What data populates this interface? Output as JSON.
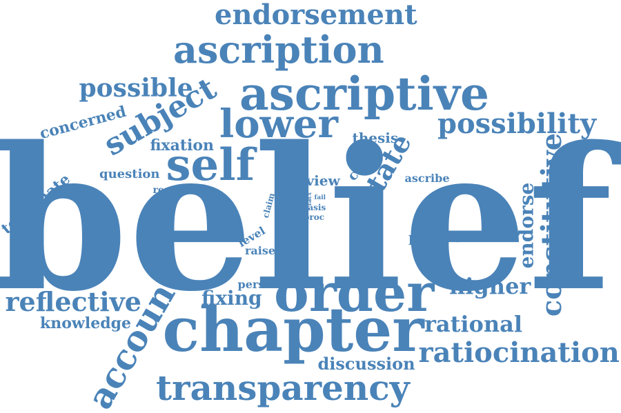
{
  "cloud": {
    "color": "#4a83b8",
    "words": {
      "belief": "belief",
      "order": "order",
      "chapter": "chapter",
      "ascriptive": "ascriptive",
      "ascription": "ascription",
      "endorsement": "endorsement",
      "self": "self",
      "lower": "lower",
      "transparency": "transparency",
      "subject": "subject",
      "possibility": "possibility",
      "possible": "possible",
      "account": "account",
      "ratiocination": "ratiocination",
      "reflective": "reflective",
      "constitutive": "constitutive",
      "state": "state",
      "rational": "rational",
      "higher": "higher",
      "endorse": "endorse",
      "fixing": "fixing",
      "concerned": "concerned",
      "fixation": "fixation",
      "knowledge": "knowledge",
      "discussion": "discussion",
      "terminate": "terminate",
      "question": "question",
      "thesis": "thesis",
      "paradox": "paradox",
      "view": "view",
      "case": "case",
      "ascribe": "ascribe",
      "level": "level",
      "raise": "raise",
      "person": "person",
      "reason": "reason",
      "claim": "claim",
      "basis": "basis",
      "proc": "proc",
      "fact": "fact",
      "fail": "fail"
    }
  }
}
